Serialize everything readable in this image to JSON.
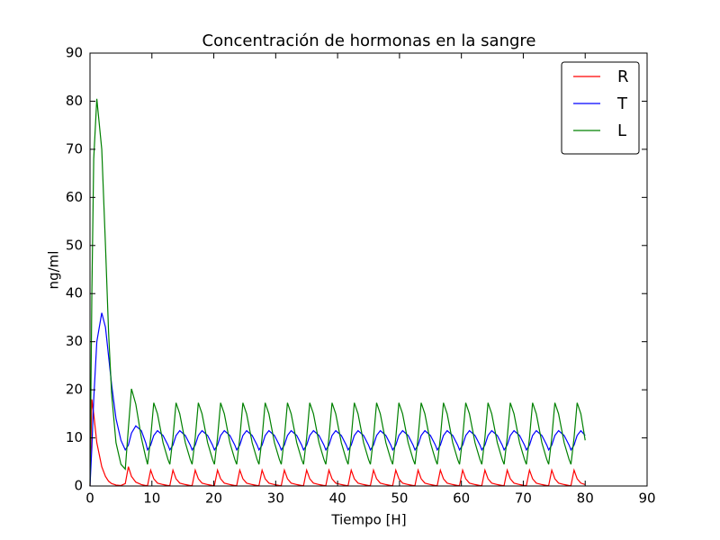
{
  "chart_data": {
    "type": "line",
    "title": "Concentración de hormonas en la sangre",
    "x_label": "Tiempo [H]",
    "y_label": "ng/ml",
    "xlim": [
      0,
      90
    ],
    "xticks": [
      0,
      10,
      20,
      30,
      40,
      50,
      60,
      70,
      80,
      90
    ],
    "ylim": [
      0,
      90
    ],
    "yticks": [
      0,
      10,
      20,
      30,
      40,
      50,
      60,
      70,
      80,
      90
    ],
    "grid": false,
    "legend": "upper-right",
    "x": [
      0,
      0.3,
      0.6,
      1.1,
      1.9,
      2.5,
      3.0,
      3.5,
      4.2,
      5.0,
      5.7,
      6.2,
      6.7,
      7.4,
      8.3,
      9.0,
      9.3,
      9.8,
      10.3,
      10.9,
      11.8,
      12.6,
      12.9,
      13.4,
      13.9,
      14.5,
      15.4,
      16.2,
      16.5,
      17,
      17.5,
      18.1,
      19,
      19.8,
      20.1,
      20.6,
      21.1,
      21.7,
      22.6,
      23.4,
      23.7,
      24.2,
      24.7,
      25.3,
      26.2,
      27,
      27.3,
      27.8,
      28.3,
      28.9,
      29.8,
      30.6,
      30.9,
      31.4,
      31.9,
      32.5,
      33.4,
      34.2,
      34.5,
      35,
      35.5,
      36.1,
      37,
      37.8,
      38.1,
      38.6,
      39.1,
      39.7,
      40.6,
      41.4,
      41.7,
      42.2,
      42.7,
      43.3,
      44.2,
      45,
      45.3,
      45.8,
      46.3,
      46.9,
      47.8,
      48.6,
      48.9,
      49.4,
      49.9,
      50.5,
      51.4,
      52.2,
      52.5,
      53,
      53.5,
      54.1,
      55,
      55.8,
      56.1,
      56.6,
      57.1,
      57.7,
      58.6,
      59.4,
      59.7,
      60.2,
      60.7,
      61.3,
      62.2,
      63,
      63.3,
      63.8,
      64.3,
      64.9,
      65.8,
      66.6,
      66.9,
      67.4,
      67.9,
      68.5,
      69.4,
      70.2,
      70.5,
      71,
      71.5,
      72.1,
      73,
      73.8,
      74.1,
      74.6,
      75.1,
      75.7,
      76.6,
      77.4,
      77.7,
      78.2,
      78.7,
      79.3,
      80
    ],
    "series": [
      {
        "name": "R",
        "color": "#ff0000",
        "values": [
          0,
          18,
          15,
          9,
          4,
          2,
          1,
          0.5,
          0.2,
          0.1,
          0.5,
          4,
          2,
          0.8,
          0.3,
          0.1,
          0.1,
          3.3,
          1.5,
          0.6,
          0.3,
          0.1,
          0.1,
          3.3,
          1.5,
          0.6,
          0.3,
          0.1,
          0.1,
          3.3,
          1.5,
          0.6,
          0.3,
          0.1,
          0.1,
          3.3,
          1.5,
          0.6,
          0.3,
          0.1,
          0.1,
          3.3,
          1.5,
          0.6,
          0.3,
          0.1,
          0.1,
          3.3,
          1.5,
          0.6,
          0.3,
          0.1,
          0.1,
          3.3,
          1.5,
          0.6,
          0.3,
          0.1,
          0.1,
          3.3,
          1.5,
          0.6,
          0.3,
          0.1,
          0.1,
          3.3,
          1.5,
          0.6,
          0.3,
          0.1,
          0.1,
          3.3,
          1.5,
          0.6,
          0.3,
          0.1,
          0.1,
          3.3,
          1.5,
          0.6,
          0.3,
          0.1,
          0.1,
          3.3,
          1.5,
          0.6,
          0.3,
          0.1,
          0.1,
          3.3,
          1.5,
          0.6,
          0.3,
          0.1,
          0.1,
          3.3,
          1.5,
          0.6,
          0.3,
          0.1,
          0.1,
          3.3,
          1.5,
          0.6,
          0.3,
          0.1,
          0.1,
          3.3,
          1.5,
          0.6,
          0.3,
          0.1,
          0.1,
          3.3,
          1.5,
          0.6,
          0.3,
          0.1,
          0.1,
          3.3,
          1.5,
          0.6,
          0.3,
          0.1,
          0.1,
          3.3,
          1.5,
          0.6,
          0.3,
          0.1,
          0.1,
          3.3,
          1.5,
          0.6,
          0.3
        ]
      },
      {
        "name": "T",
        "color": "#0000ff",
        "values": [
          0,
          8,
          18,
          30,
          36,
          33,
          27,
          21,
          14,
          9.5,
          7.5,
          8.5,
          11,
          12.5,
          11.5,
          9,
          7.5,
          8.5,
          10.5,
          11.5,
          10.5,
          8.5,
          7.5,
          8.5,
          10.5,
          11.5,
          10.5,
          8.5,
          7.5,
          8.5,
          10.5,
          11.5,
          10.5,
          8.5,
          7.5,
          8.5,
          10.5,
          11.5,
          10.5,
          8.5,
          7.5,
          8.5,
          10.5,
          11.5,
          10.5,
          8.5,
          7.5,
          8.5,
          10.5,
          11.5,
          10.5,
          8.5,
          7.5,
          8.5,
          10.5,
          11.5,
          10.5,
          8.5,
          7.5,
          8.5,
          10.5,
          11.5,
          10.5,
          8.5,
          7.5,
          8.5,
          10.5,
          11.5,
          10.5,
          8.5,
          7.5,
          8.5,
          10.5,
          11.5,
          10.5,
          8.5,
          7.5,
          8.5,
          10.5,
          11.5,
          10.5,
          8.5,
          7.5,
          8.5,
          10.5,
          11.5,
          10.5,
          8.5,
          7.5,
          8.5,
          10.5,
          11.5,
          10.5,
          8.5,
          7.5,
          8.5,
          10.5,
          11.5,
          10.5,
          8.5,
          7.5,
          8.5,
          10.5,
          11.5,
          10.5,
          8.5,
          7.5,
          8.5,
          10.5,
          11.5,
          10.5,
          8.5,
          7.5,
          8.5,
          10.5,
          11.5,
          10.5,
          8.5,
          7.5,
          8.5,
          10.5,
          11.5,
          10.5,
          8.5,
          7.5,
          8.5,
          10.5,
          11.5,
          10.5,
          8.5,
          7.5,
          8.5,
          10.5,
          11.5,
          10.5
        ]
      },
      {
        "name": "L",
        "color": "#008000",
        "values": [
          0,
          40,
          68,
          80.5,
          70,
          50,
          32,
          19,
          9,
          4.5,
          3.5,
          12,
          20.2,
          17,
          10,
          6,
          4.5,
          10,
          17.3,
          15,
          9,
          5.5,
          4.5,
          10,
          17.3,
          15,
          9,
          5.5,
          4.5,
          10,
          17.3,
          15,
          9,
          5.5,
          4.5,
          10,
          17.3,
          15,
          9,
          5.5,
          4.5,
          10,
          17.3,
          15,
          9,
          5.5,
          4.5,
          10,
          17.3,
          15,
          9,
          5.5,
          4.5,
          10,
          17.3,
          15,
          9,
          5.5,
          4.5,
          10,
          17.3,
          15,
          9,
          5.5,
          4.5,
          10,
          17.3,
          15,
          9,
          5.5,
          4.5,
          10,
          17.3,
          15,
          9,
          5.5,
          4.5,
          10,
          17.3,
          15,
          9,
          5.5,
          4.5,
          10,
          17.3,
          15,
          9,
          5.5,
          4.5,
          10,
          17.3,
          15,
          9,
          5.5,
          4.5,
          10,
          17.3,
          15,
          9,
          5.5,
          4.5,
          10,
          17.3,
          15,
          9,
          5.5,
          4.5,
          10,
          17.3,
          15,
          9,
          5.5,
          4.5,
          10,
          17.3,
          15,
          9,
          5.5,
          4.5,
          10,
          17.3,
          15,
          9,
          5.5,
          4.5,
          10,
          17.3,
          15,
          9,
          5.5,
          4.5,
          10,
          17.3,
          15,
          9.5
        ]
      }
    ]
  }
}
